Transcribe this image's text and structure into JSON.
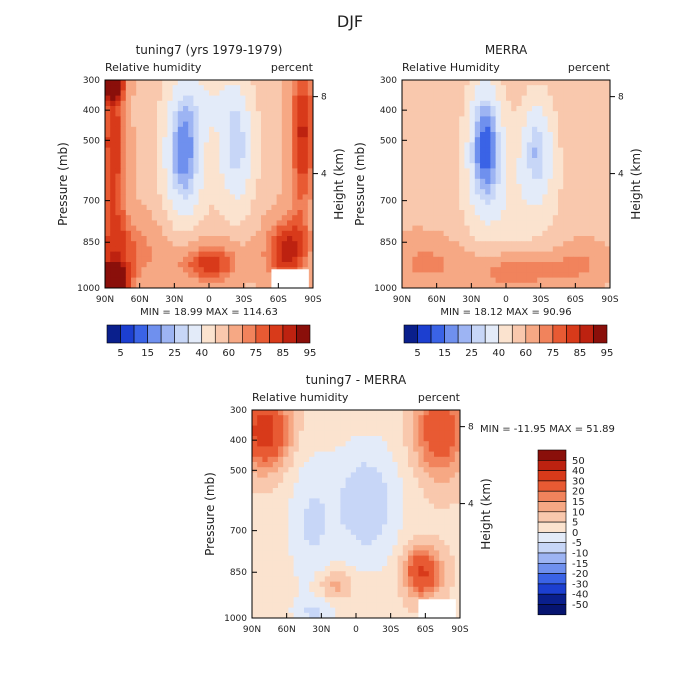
{
  "title": "DJF",
  "chart_data": [
    {
      "type": "heatmap",
      "title": "tuning7 (yrs 1979-1979)",
      "left_label": "Relative humidity",
      "right_label": "percent",
      "ylabel": "Pressure (mb)",
      "ylabel_right": "Height (km)",
      "x_ticks": [
        "90N",
        "60N",
        "30N",
        "0",
        "30S",
        "60S",
        "90S"
      ],
      "y_ticks": [
        "300",
        "400",
        "500",
        "700",
        "850",
        "1000"
      ],
      "y_ticks_right": [
        "8",
        "4"
      ],
      "stats": "MIN =  18.99   MAX = 114.63",
      "field": "full"
    },
    {
      "type": "heatmap",
      "title": "MERRA",
      "left_label": "Relative Humidity",
      "right_label": "percent",
      "ylabel": "Pressure (mb)",
      "ylabel_right": "Height (km)",
      "x_ticks": [
        "90N",
        "60N",
        "30N",
        "0",
        "30S",
        "60S",
        "90S"
      ],
      "y_ticks": [
        "300",
        "400",
        "500",
        "700",
        "850",
        "1000"
      ],
      "y_ticks_right": [
        "8",
        "4"
      ],
      "stats": "MIN =  18.12   MAX =  90.96",
      "field": "merra"
    },
    {
      "type": "heatmap",
      "title": "tuning7 - MERRA",
      "left_label": "Relative humidity",
      "right_label": "percent",
      "ylabel": "Pressure (mb)",
      "ylabel_right": "Height (km)",
      "x_ticks": [
        "90N",
        "60N",
        "30N",
        "0",
        "30S",
        "60S",
        "90S"
      ],
      "y_ticks": [
        "300",
        "400",
        "500",
        "700",
        "850",
        "1000"
      ],
      "y_ticks_right": [
        "8",
        "4"
      ],
      "stats": "MIN = -11.95   MAX =  51.89",
      "field": "diff"
    }
  ],
  "colorbar_full": {
    "labels": [
      "5",
      "15",
      "25",
      "40",
      "60",
      "75",
      "85",
      "95"
    ],
    "colors": [
      "#0a1f8c",
      "#1c3fd0",
      "#3a63e6",
      "#6f90ee",
      "#9db4f3",
      "#c7d6f7",
      "#e3ebf9",
      "#fbe3cf",
      "#f9c8ad",
      "#f6a884",
      "#f1835c",
      "#e85a33",
      "#d83a1a",
      "#bd2210",
      "#8a0f0a"
    ]
  },
  "colorbar_diff": {
    "labels": [
      "50",
      "40",
      "30",
      "20",
      "15",
      "10",
      "5",
      "0",
      "-5",
      "-10",
      "-15",
      "-20",
      "-30",
      "-40",
      "-50"
    ],
    "colors": [
      "#8a0f0a",
      "#bd2210",
      "#d83a1a",
      "#e85a33",
      "#f1835c",
      "#f6a884",
      "#f9c8ad",
      "#fbe3cf",
      "#e3ebf9",
      "#c7d6f7",
      "#9db4f3",
      "#6f90ee",
      "#3a63e6",
      "#1c3fd0",
      "#0a1f8c",
      "#061470"
    ]
  }
}
